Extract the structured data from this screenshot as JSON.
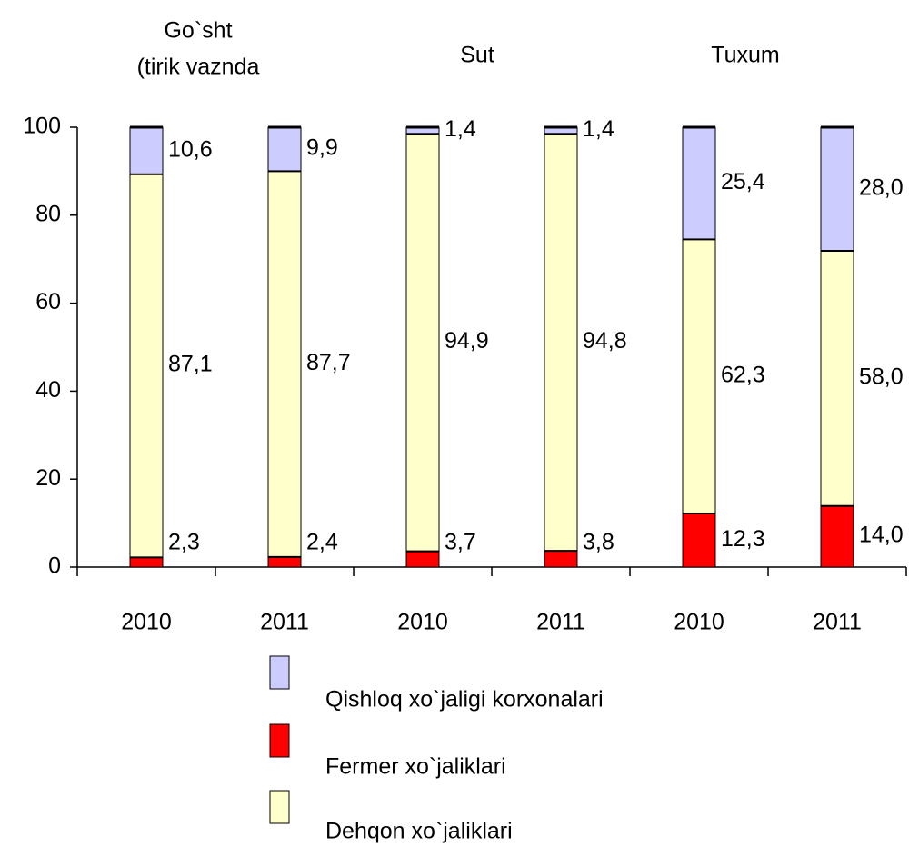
{
  "chart_data": {
    "type": "stacked_bar",
    "group_labels": [
      [
        "Go`sht",
        "(tirik vaznda"
      ],
      [
        "Sut"
      ],
      [
        "Tuxum"
      ]
    ],
    "categories": [
      "2010",
      "2011",
      "2010",
      "2011",
      "2010",
      "2011"
    ],
    "series": [
      {
        "name": "Fermer xo`jaliklari",
        "color": "#ff0000",
        "values": [
          2.3,
          2.4,
          3.7,
          3.8,
          12.3,
          14.0
        ],
        "value_labels": [
          "2,3",
          "2,4",
          "3,7",
          "3,8",
          "12,3",
          "14,0"
        ]
      },
      {
        "name": "Dehqon xo`jaliklari",
        "color": "#ffffcc",
        "values": [
          87.1,
          87.7,
          94.9,
          94.8,
          62.3,
          58.0
        ],
        "value_labels": [
          "87,1",
          "87,7",
          "94,9",
          "94,8",
          "62,3",
          "58,0"
        ]
      },
      {
        "name": "Qishloq xo`jaligi korxonalari",
        "color": "#ccccff",
        "values": [
          10.6,
          9.9,
          1.4,
          1.4,
          25.4,
          28.0
        ],
        "value_labels": [
          "10,6",
          "9,9",
          "1,4",
          "1,4",
          "25,4",
          "28,0"
        ]
      }
    ],
    "ylim": [
      0,
      100
    ],
    "yticks": [
      0,
      20,
      40,
      60,
      80,
      100
    ]
  }
}
